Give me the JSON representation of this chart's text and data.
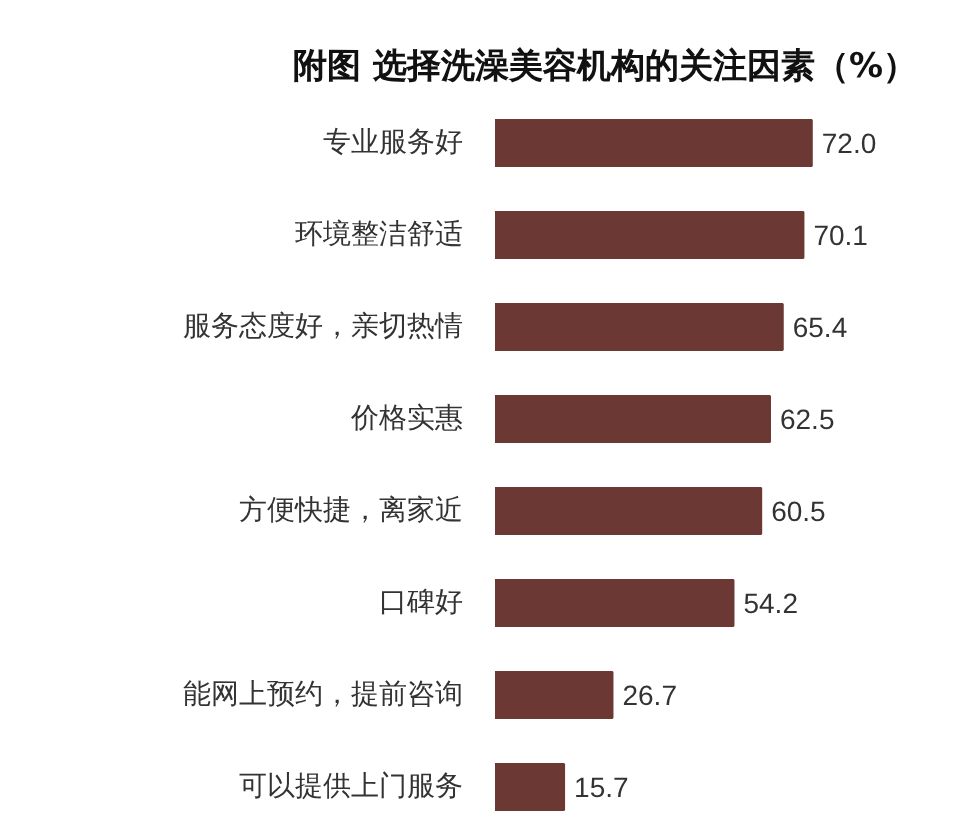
{
  "chart_data": {
    "type": "bar",
    "orientation": "horizontal",
    "title": "附图  选择洗澡美容机构的关注因素（%）",
    "categories": [
      "专业服务好",
      "环境整洁舒适",
      "服务态度好，亲切热情",
      "价格实惠",
      "方便快捷，离家近",
      "口碑好",
      "能网上预约，提前咨询",
      "可以提供上门服务"
    ],
    "values": [
      72.0,
      70.1,
      65.4,
      62.5,
      60.5,
      54.2,
      26.7,
      15.7
    ],
    "value_labels": [
      "72.0",
      "70.1",
      "65.4",
      "62.5",
      "60.5",
      "54.2",
      "26.7",
      "15.7"
    ],
    "color": "#6b3833"
  }
}
